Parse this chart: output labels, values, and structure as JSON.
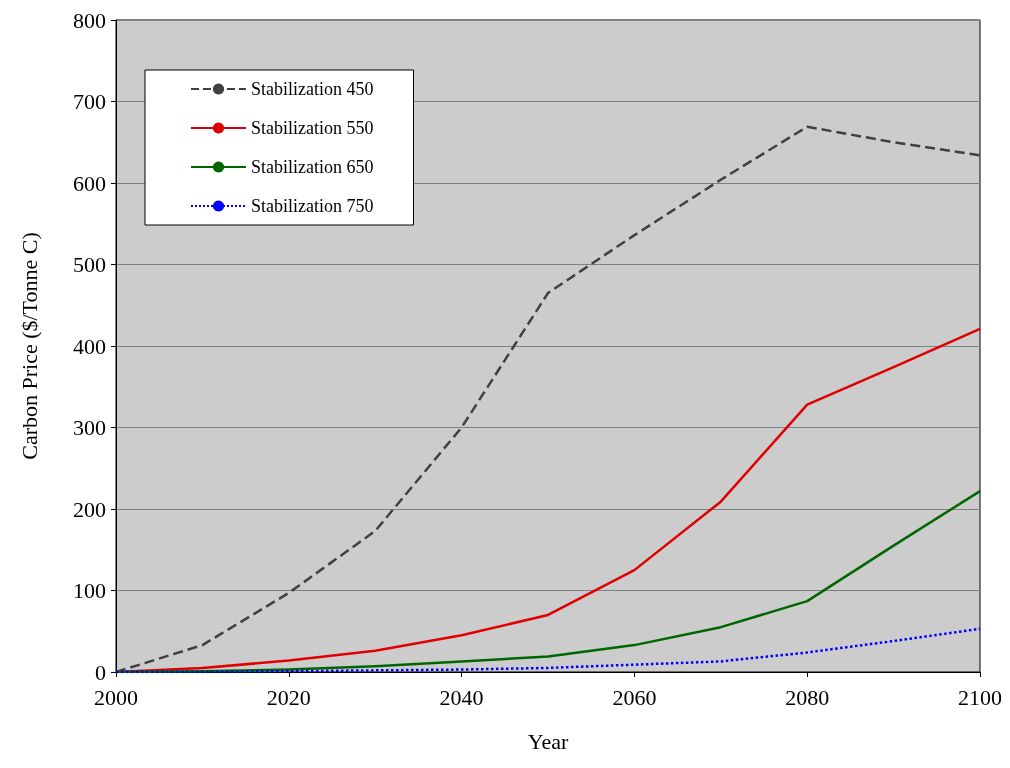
{
  "chart_data": {
    "type": "line",
    "xlabel": "Year",
    "ylabel": "Carbon Price ($/Tonne C)",
    "x": [
      2000,
      2010,
      2020,
      2030,
      2040,
      2050,
      2060,
      2070,
      2080,
      2090,
      2100
    ],
    "series": [
      {
        "name": "Stabilization 450",
        "color": "#404040",
        "line_style": "dashed",
        "values": [
          0,
          33,
          97,
          173,
          300,
          465,
          536,
          604,
          669,
          650,
          634
        ]
      },
      {
        "name": "Stabilization 550",
        "color": "#e00000",
        "line_style": "solid",
        "values": [
          0,
          5,
          14,
          26,
          45,
          70,
          125,
          209,
          328,
          374,
          421
        ]
      },
      {
        "name": "Stabilization 650",
        "color": "#006600",
        "line_style": "solid",
        "values": [
          0,
          1,
          3,
          7,
          13,
          19,
          33,
          55,
          87,
          155,
          222
        ]
      },
      {
        "name": "Stabilization 750",
        "color": "#0000ff",
        "line_style": "dotted",
        "values": [
          0,
          0,
          1,
          2,
          3,
          5,
          9,
          13,
          24,
          38,
          53
        ]
      }
    ],
    "xlim": [
      2000,
      2100
    ],
    "xticks": [
      2000,
      2020,
      2040,
      2060,
      2080,
      2100
    ],
    "ylim": [
      0,
      800
    ],
    "yticks": [
      0,
      100,
      200,
      300,
      400,
      500,
      600,
      700,
      800
    ],
    "grid": "y",
    "legend": "top left",
    "marker": "none"
  }
}
